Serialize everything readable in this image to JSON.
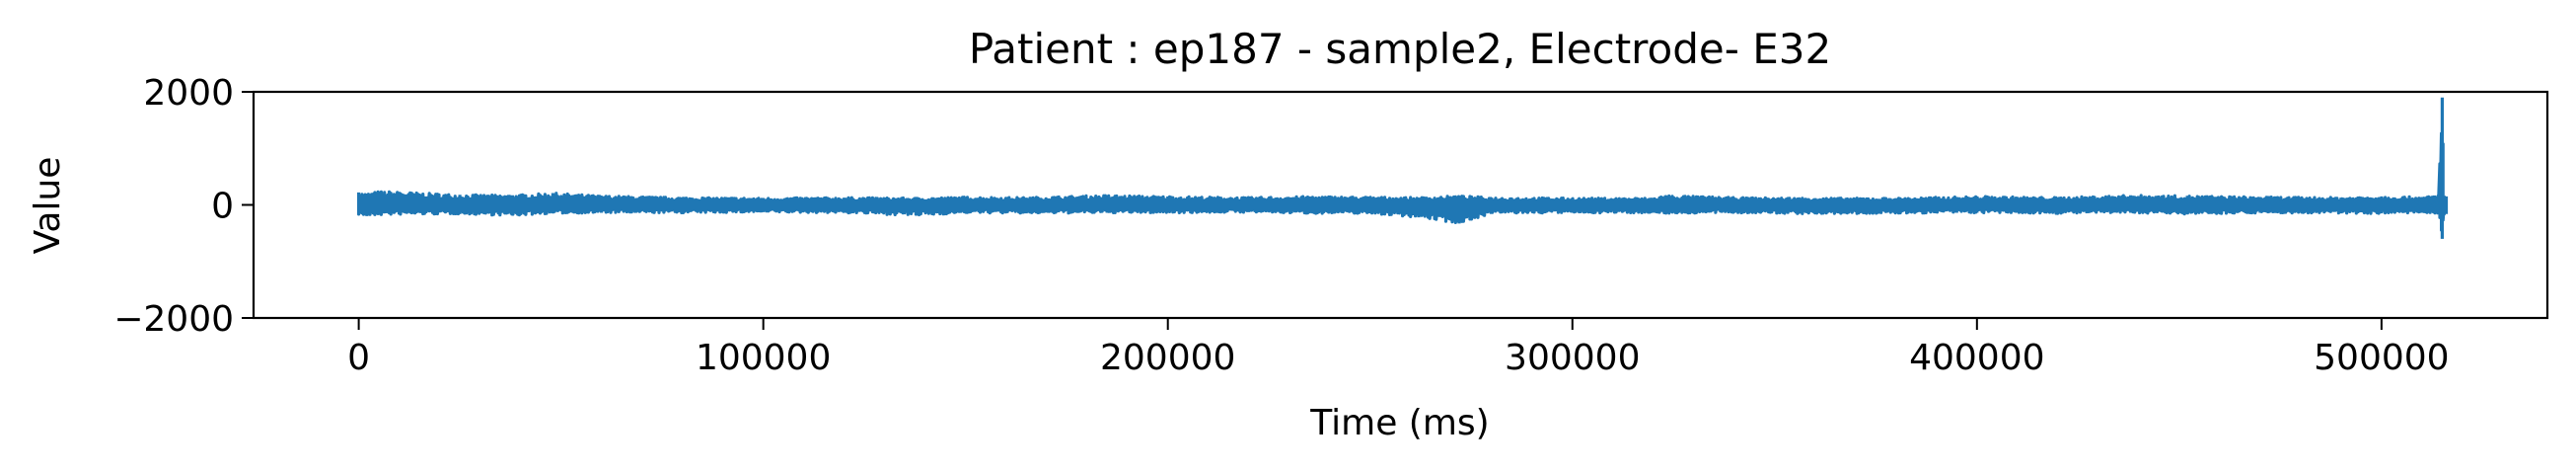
{
  "chart_data": {
    "type": "line",
    "title": "Patient : ep187 - sample2, Electrode- E32",
    "xlabel": "Time (ms)",
    "ylabel": "Value",
    "xlim": [
      -26000,
      541000
    ],
    "ylim": [
      -2000,
      2000
    ],
    "x_ticks": [
      0,
      100000,
      200000,
      300000,
      400000,
      500000
    ],
    "x_tick_labels": [
      "0",
      "100000",
      "200000",
      "300000",
      "400000",
      "500000"
    ],
    "y_ticks": [
      -2000,
      0,
      2000
    ],
    "y_tick_labels": [
      "−2000",
      "0",
      "2000"
    ],
    "grid": false,
    "series": [
      {
        "name": "E32",
        "color": "#1f77b4",
        "x": [
          0,
          2000,
          5000,
          10000,
          25000,
          38000,
          48000,
          60000,
          80000,
          100000,
          120000,
          138000,
          150000,
          165000,
          185000,
          200000,
          220000,
          235000,
          250000,
          262000,
          272000,
          280000,
          300000,
          320000,
          323000,
          340000,
          360000,
          380000,
          395000,
          400000,
          420000,
          438000,
          452000,
          470000,
          490000,
          500000,
          510000,
          514000,
          515000,
          515500,
          516000
        ],
        "upper": [
          220,
          200,
          240,
          230,
          180,
          170,
          210,
          160,
          130,
          120,
          130,
          120,
          140,
          130,
          170,
          150,
          130,
          150,
          140,
          130,
          160,
          130,
          120,
          120,
          170,
          130,
          120,
          120,
          140,
          150,
          130,
          170,
          160,
          140,
          130,
          150,
          140,
          160,
          1900,
          160,
          150
        ],
        "lower": [
          -170,
          -200,
          -180,
          -170,
          -160,
          -190,
          -150,
          -140,
          -140,
          -130,
          -140,
          -190,
          -140,
          -150,
          -140,
          -140,
          -130,
          -150,
          -150,
          -220,
          -330,
          -150,
          -140,
          -140,
          -150,
          -140,
          -160,
          -150,
          -140,
          -140,
          -150,
          -140,
          -160,
          -140,
          -150,
          -150,
          -140,
          -170,
          -600,
          -180,
          -160
        ]
      }
    ]
  }
}
